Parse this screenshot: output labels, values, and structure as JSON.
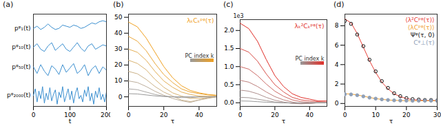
{
  "chart_data": [
    {
      "type": "line",
      "title": "(a)",
      "xlabel": "t",
      "xlim": [
        0,
        200
      ],
      "xticks": [
        0,
        100,
        200
      ],
      "ylim": [
        0,
        4.2
      ],
      "tick_labels": "x",
      "series": [
        {
          "name": "pᵠ₁(t)",
          "color": "#3b8fd0",
          "x": [
            0,
            10,
            20,
            30,
            40,
            50,
            60,
            70,
            80,
            90,
            100,
            110,
            120,
            130,
            140,
            150,
            160,
            170,
            180,
            190,
            200
          ],
          "values": [
            3.55,
            3.65,
            3.5,
            3.6,
            3.75,
            3.6,
            3.5,
            3.55,
            3.7,
            3.65,
            3.6,
            3.7,
            3.65,
            3.55,
            3.6,
            3.7,
            3.8,
            3.75,
            3.85,
            3.9,
            3.85
          ]
        },
        {
          "name": "pᵠ₁₀(t)",
          "color": "#3b8fd0",
          "x": [
            0,
            10,
            20,
            30,
            40,
            50,
            60,
            70,
            80,
            90,
            100,
            110,
            120,
            130,
            140,
            150,
            160,
            170,
            180,
            190,
            200
          ],
          "values": [
            2.7,
            2.85,
            2.6,
            2.5,
            2.75,
            2.9,
            2.55,
            2.7,
            2.85,
            2.6,
            2.5,
            2.7,
            2.9,
            2.65,
            2.5,
            2.75,
            2.85,
            2.6,
            2.7,
            2.8,
            2.75
          ]
        },
        {
          "name": "pᵠ₅₀(t)",
          "color": "#3b8fd0",
          "x": [
            0,
            10,
            20,
            30,
            40,
            50,
            60,
            70,
            80,
            90,
            100,
            110,
            120,
            130,
            140,
            150,
            160,
            170,
            180,
            190,
            200
          ],
          "values": [
            1.8,
            1.5,
            1.9,
            1.6,
            1.4,
            1.85,
            1.7,
            1.45,
            1.9,
            1.55,
            1.75,
            1.95,
            1.5,
            1.65,
            1.9,
            1.4,
            1.7,
            1.85,
            1.5,
            1.8,
            1.65
          ]
        },
        {
          "name": "pᵠ₂₀₀₀(t)",
          "color": "#3b8fd0",
          "x": [
            0,
            5,
            10,
            15,
            20,
            25,
            30,
            35,
            40,
            45,
            50,
            55,
            60,
            65,
            70,
            75,
            80,
            85,
            90,
            95,
            100,
            105,
            110,
            115,
            120,
            125,
            130,
            135,
            140,
            145,
            150,
            155,
            160,
            165,
            170,
            175,
            180,
            185,
            190,
            195,
            200
          ],
          "values": [
            0.5,
            0.8,
            0.2,
            0.7,
            0.35,
            0.9,
            0.15,
            0.6,
            0.3,
            0.85,
            0.25,
            0.55,
            0.75,
            0.1,
            0.65,
            0.4,
            0.9,
            0.2,
            0.5,
            0.8,
            0.3,
            0.7,
            0.15,
            0.6,
            0.85,
            0.35,
            0.5,
            0.2,
            0.75,
            0.45,
            0.9,
            0.25,
            0.6,
            0.1,
            0.7,
            0.4,
            0.85,
            0.3,
            0.55,
            0.2,
            0.65
          ]
        }
      ]
    },
    {
      "type": "line",
      "title": "(b)",
      "xlabel": "τ",
      "xlim": [
        0,
        50
      ],
      "xticks": [
        0,
        20,
        40
      ],
      "ylim": [
        -6,
        52
      ],
      "yticks": [
        0,
        10,
        20,
        30,
        40,
        50
      ],
      "annotations": [
        "λₖCₖᵖᵠ(τ)",
        "PC index k"
      ],
      "x": [
        0,
        5,
        10,
        15,
        20,
        25,
        30,
        35,
        40,
        45,
        50
      ],
      "series": [
        {
          "color": "#f0a020",
          "values": [
            47,
            44,
            37,
            28,
            19,
            12,
            7,
            4,
            2.5,
            1.5,
            1
          ]
        },
        {
          "color": "#eba83a",
          "values": [
            38,
            35,
            29,
            21,
            14,
            9,
            5,
            3,
            2,
            1.2,
            0.8
          ]
        },
        {
          "color": "#e3ae55",
          "values": [
            30,
            28,
            23,
            16,
            10,
            6,
            3,
            1.5,
            0.5,
            0.3,
            0.3
          ]
        },
        {
          "color": "#d8b270",
          "values": [
            23,
            21,
            17,
            11,
            6,
            2.5,
            0.5,
            -1,
            -1,
            -0.5,
            0
          ]
        },
        {
          "color": "#cbb288",
          "values": [
            16,
            14.5,
            11,
            6.5,
            3,
            0.5,
            -2,
            -3,
            -2,
            -1,
            0
          ]
        },
        {
          "color": "#bcae9c",
          "values": [
            10,
            9,
            6.5,
            3.5,
            1,
            -1,
            -2.5,
            -3.5,
            -2,
            -0.5,
            0.5
          ]
        },
        {
          "color": "#aaa7a4",
          "values": [
            5,
            4.5,
            3,
            1.5,
            0.5,
            0,
            -0.5,
            -0.5,
            0,
            0,
            0
          ]
        },
        {
          "color": "#999999",
          "values": [
            2,
            1.8,
            1.2,
            0.6,
            0.2,
            0,
            0,
            0,
            0,
            0,
            0
          ]
        }
      ]
    },
    {
      "type": "line",
      "title": "(c)",
      "xlabel": "τ",
      "xlim": [
        0,
        50
      ],
      "xticks": [
        0,
        20,
        40
      ],
      "ylim": [
        -0.1,
        2.3
      ],
      "yticks": [
        {
          "value": 0,
          "label": "0.0"
        },
        {
          "value": 0.5,
          "label": "0.5"
        },
        {
          "value": 1,
          "label": "1.0"
        },
        {
          "value": 1.5,
          "label": "1.5"
        },
        {
          "value": 2,
          "label": "2.0"
        }
      ],
      "annotations": [
        "λₖ²Cₖᵖᵠ(τ)",
        "PC index k",
        "1e3"
      ],
      "x": [
        0,
        5,
        10,
        15,
        20,
        25,
        30,
        35,
        40,
        45,
        50
      ],
      "series": [
        {
          "color": "#e0302a",
          "values": [
            2.2,
            2.05,
            1.7,
            1.2,
            0.75,
            0.45,
            0.25,
            0.15,
            0.1,
            0.05,
            0.05
          ]
        },
        {
          "color": "#d8504a",
          "values": [
            1.5,
            1.4,
            1.15,
            0.8,
            0.5,
            0.3,
            0.15,
            0.08,
            0.05,
            0.03,
            0.02
          ]
        },
        {
          "color": "#cc6a66",
          "values": [
            1.0,
            0.93,
            0.75,
            0.52,
            0.32,
            0.18,
            0.08,
            0.03,
            0.01,
            0,
            0
          ]
        },
        {
          "color": "#bd7f7c",
          "values": [
            0.62,
            0.57,
            0.45,
            0.3,
            0.17,
            0.08,
            0.02,
            -0.02,
            -0.02,
            0,
            0
          ]
        },
        {
          "color": "#ae8f8d",
          "values": [
            0.35,
            0.32,
            0.25,
            0.15,
            0.07,
            0.02,
            -0.02,
            -0.03,
            -0.02,
            0,
            0
          ]
        },
        {
          "color": "#a39896",
          "values": [
            0.15,
            0.14,
            0.1,
            0.06,
            0.02,
            0,
            -0.01,
            -0.01,
            0,
            0,
            0
          ]
        },
        {
          "color": "#999999",
          "values": [
            0.05,
            0.045,
            0.03,
            0.015,
            0.005,
            0,
            0,
            0,
            0,
            0,
            0
          ]
        }
      ]
    },
    {
      "type": "line",
      "title": "(d)",
      "xlabel": "τ",
      "xlim": [
        0,
        30
      ],
      "xticks": [
        0,
        10,
        20,
        30
      ],
      "ylim": [
        -0.3,
        9.2
      ],
      "yticks": [
        0,
        2,
        4,
        6,
        8
      ],
      "legend": "top-right",
      "x": [
        0,
        2,
        4,
        6,
        8,
        10,
        12,
        14,
        16,
        18,
        20,
        22,
        24,
        26,
        28,
        30
      ],
      "series": [
        {
          "name": "⟨λ²Cᵖᵠ(τ)⟩",
          "color": "#e8413a",
          "type": "line",
          "values": [
            8.7,
            8.3,
            7.2,
            5.8,
            4.4,
            3.2,
            2.2,
            1.5,
            1.0,
            0.7,
            0.5,
            0.4,
            0.35,
            0.3,
            0.3,
            0.3
          ]
        },
        {
          "name": "⟨λCᵖᵠ(τ)⟩",
          "color": "#f0a030",
          "type": "line",
          "values": [
            1.0,
            0.97,
            0.88,
            0.75,
            0.62,
            0.5,
            0.42,
            0.36,
            0.32,
            0.3,
            0.29,
            0.28,
            0.28,
            0.28,
            0.28,
            0.28
          ]
        },
        {
          "name": "Ψᵠ(τ, 0)",
          "color": "#111111",
          "type": "scatter",
          "marker": "circle-open",
          "values": [
            8.5,
            8.2,
            7.1,
            5.9,
            4.5,
            3.3,
            2.3,
            1.6,
            1.05,
            0.75,
            0.55,
            0.45,
            0.4,
            0.35,
            0.35,
            0.3
          ]
        },
        {
          "name": "Cᵠ⊥(τ)",
          "color": "#8fa0b8",
          "type": "scatter",
          "marker": "circle",
          "values": [
            0.95,
            0.93,
            0.85,
            0.73,
            0.6,
            0.5,
            0.42,
            0.36,
            0.32,
            0.3,
            0.29,
            0.28,
            0.28,
            0.28,
            0.28,
            0.28
          ]
        }
      ]
    }
  ]
}
